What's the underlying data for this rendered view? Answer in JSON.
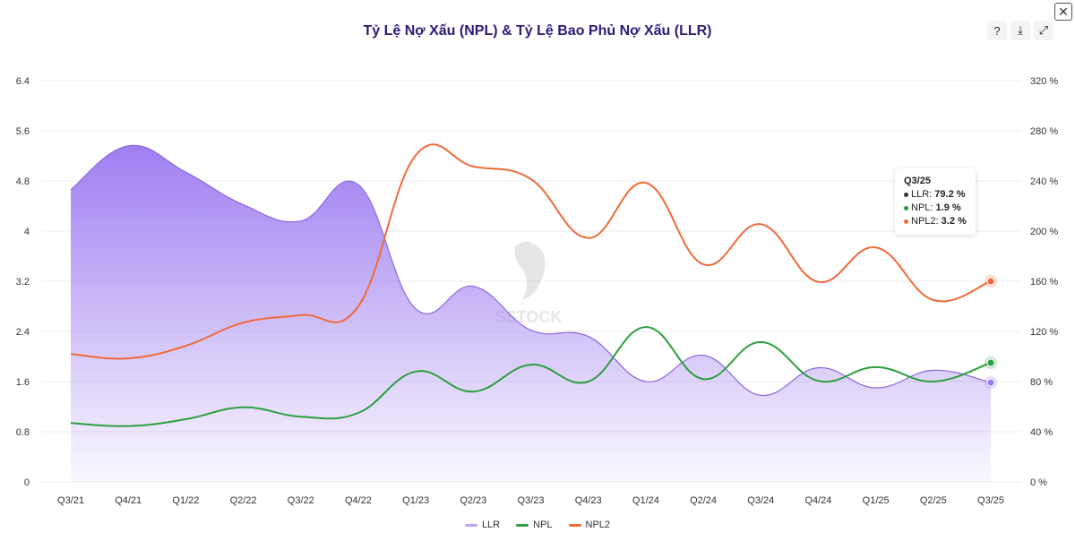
{
  "title": "Tỷ Lệ Nợ Xấu (NPL) & Tỷ Lệ Bao Phủ Nợ Xấu (LLR)",
  "toolbar": {
    "help_icon": "question-circle-icon",
    "download_icon": "download-icon",
    "expand_icon": "expand-icon",
    "close_icon": "close-icon"
  },
  "watermark": "SSTOCK",
  "tooltip": {
    "header": "Q3/25",
    "rows": [
      {
        "label": "LLR: ",
        "value": "79.2 %",
        "color": "#333333"
      },
      {
        "label": "NPL: ",
        "value": "1.9 %",
        "color": "#2e9e3e"
      },
      {
        "label": "NPL2: ",
        "value": "3.2 %",
        "color": "#f06a3a"
      }
    ]
  },
  "chart_data": {
    "type": "line",
    "categories": [
      "Q3/21",
      "Q4/21",
      "Q1/22",
      "Q2/22",
      "Q3/22",
      "Q4/22",
      "Q1/23",
      "Q2/23",
      "Q3/23",
      "Q4/23",
      "Q1/24",
      "Q2/24",
      "Q3/24",
      "Q4/24",
      "Q1/25",
      "Q2/25",
      "Q3/25"
    ],
    "y_left": {
      "range": [
        0,
        6.4
      ],
      "ticks": [
        "0",
        "0.8",
        "1.6",
        "2.4",
        "3.2",
        "4",
        "4.8",
        "5.6",
        "6.4"
      ]
    },
    "y_right": {
      "range": [
        0,
        320
      ],
      "ticks": [
        "0 %",
        "40 %",
        "80 %",
        "120 %",
        "160 %",
        "200 %",
        "240 %",
        "280 %",
        "320 %"
      ]
    },
    "grid": true,
    "legend_placement": "bottom",
    "series": [
      {
        "name": "LLR",
        "type": "area",
        "axis": "right",
        "color": "#9a78f0",
        "values": [
          233,
          268,
          247,
          221,
          208,
          237,
          138,
          156,
          121,
          116,
          80,
          101,
          69,
          91,
          75,
          89,
          79.2
        ]
      },
      {
        "name": "NPL",
        "type": "line",
        "axis": "left",
        "color": "#2e9e3e",
        "values": [
          0.94,
          0.89,
          1.0,
          1.19,
          1.04,
          1.1,
          1.76,
          1.44,
          1.87,
          1.6,
          2.47,
          1.64,
          2.23,
          1.61,
          1.83,
          1.6,
          1.9
        ]
      },
      {
        "name": "NPL2",
        "type": "line",
        "axis": "left",
        "color": "#f06a3a",
        "values": [
          2.04,
          1.97,
          2.17,
          2.54,
          2.66,
          2.8,
          5.21,
          5.03,
          4.83,
          3.89,
          4.77,
          3.47,
          4.11,
          3.19,
          3.74,
          2.9,
          3.2
        ]
      }
    ]
  }
}
